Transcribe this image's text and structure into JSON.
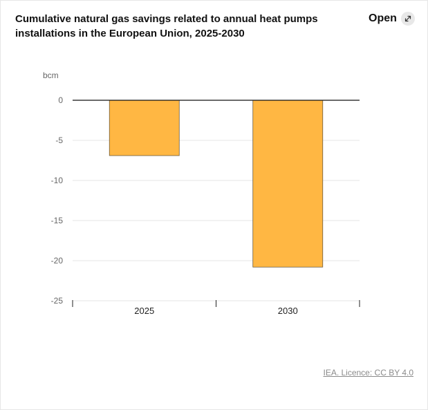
{
  "header": {
    "title": "Cumulative natural gas savings related to annual heat pumps installations in the European Union, 2025-2030",
    "open_label": "Open"
  },
  "footer": {
    "credit": "IEA. Licence: CC BY 4.0"
  },
  "colors": {
    "bar": "#ffb743",
    "bar_stroke": "#6b5a3a",
    "grid": "#e4e4e4",
    "zero_line": "#111111",
    "tick_label": "#666666",
    "category_label": "#222222"
  },
  "icons": {
    "open": "external-link-arrows-icon"
  },
  "chart_data": {
    "type": "bar",
    "title": "Cumulative natural gas savings related to annual heat pumps installations in the European Union, 2025-2030",
    "ylabel": "bcm",
    "xlabel": "",
    "categories": [
      "2025",
      "2030"
    ],
    "values": [
      -6.9,
      -20.8
    ],
    "ylim": [
      -25,
      0
    ],
    "yticks": [
      0,
      -5,
      -10,
      -15,
      -20,
      -25
    ],
    "ytick_labels": [
      "0",
      "-5",
      "-10",
      "-15",
      "-20",
      "-25"
    ],
    "grid": true,
    "legend": false
  }
}
